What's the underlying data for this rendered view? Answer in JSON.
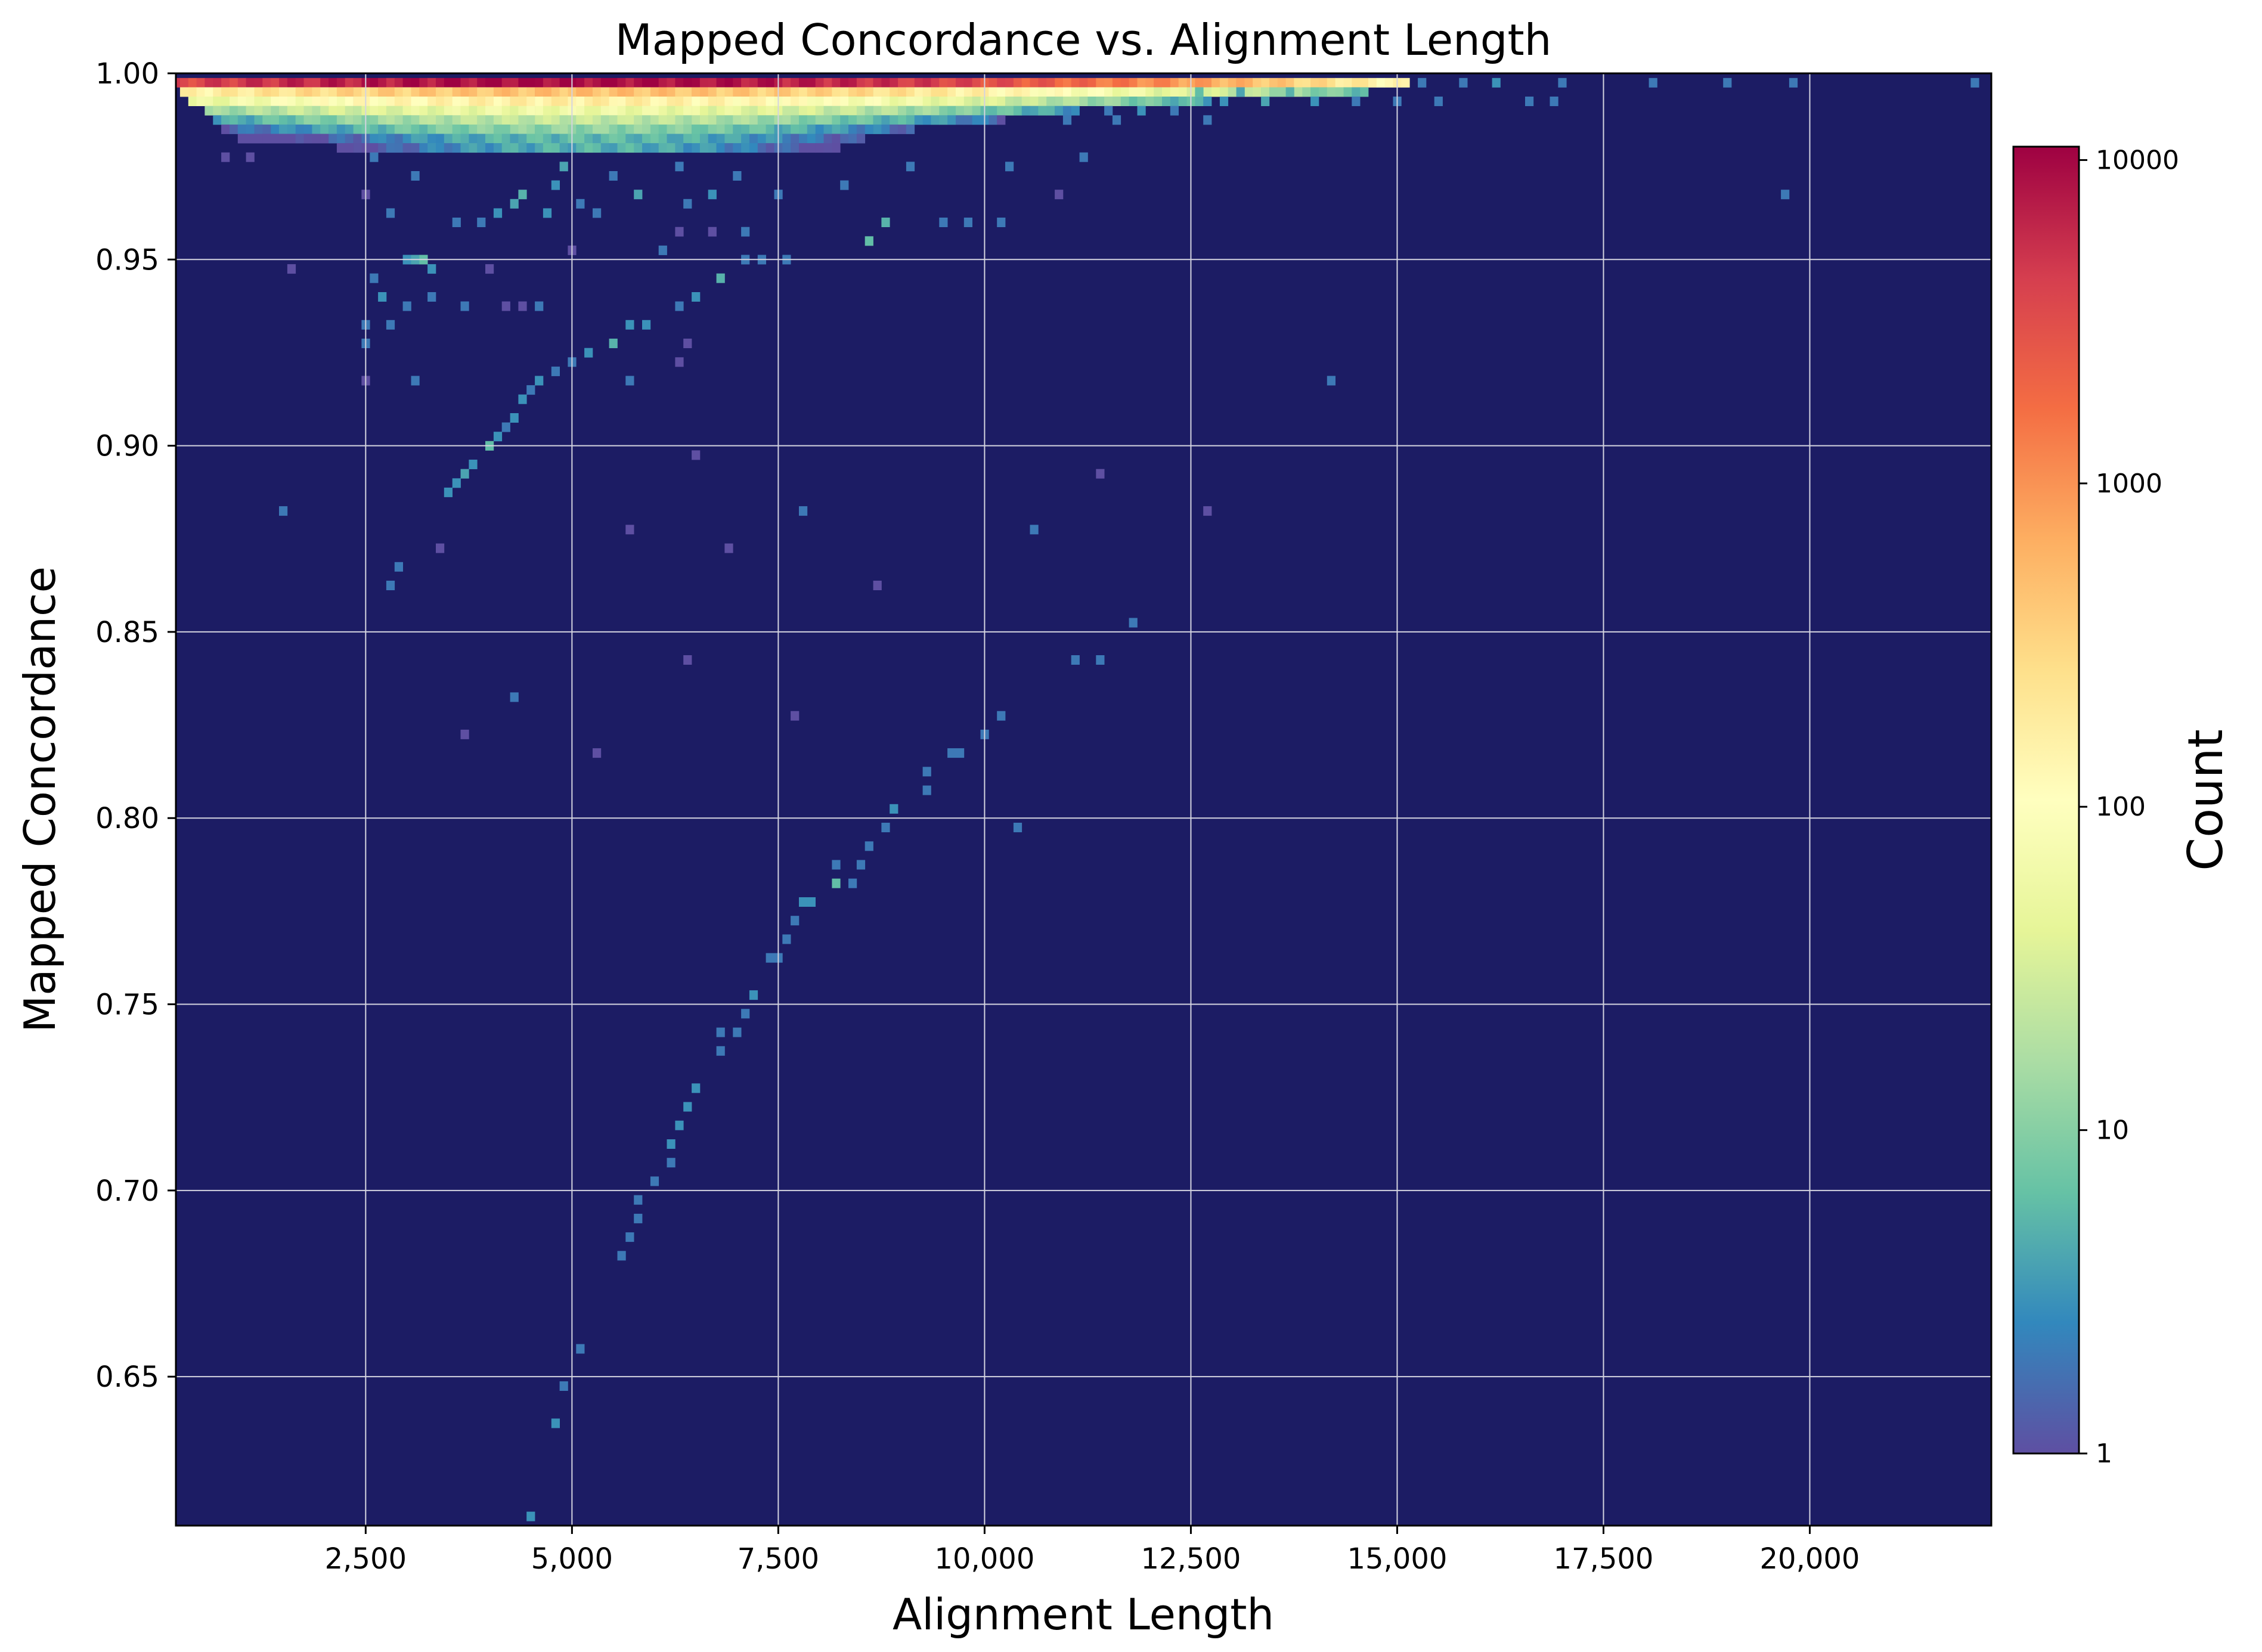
{
  "chart_data": {
    "type": "heatmap",
    "title": "Mapped Concordance vs. Alignment Length",
    "xlabel": "Alignment Length",
    "ylabel": "Mapped Concordance",
    "xlim": [
      200,
      22200
    ],
    "ylim": [
      0.61,
      1.0
    ],
    "x_ticks": [
      2500,
      5000,
      7500,
      10000,
      12500,
      15000,
      17500,
      20000
    ],
    "x_tick_labels": [
      "2,500",
      "5,000",
      "7,500",
      "10,000",
      "12,500",
      "15,000",
      "17,500",
      "20,000"
    ],
    "y_ticks": [
      0.65,
      0.7,
      0.75,
      0.8,
      0.85,
      0.9,
      0.95,
      1.0
    ],
    "y_tick_labels": [
      "0.65",
      "0.70",
      "0.75",
      "0.80",
      "0.85",
      "0.90",
      "0.95",
      "1.00"
    ],
    "grid": true,
    "background_color": "#1c1c64",
    "colormap": "Spectral_r",
    "colorbar": {
      "label": "Count",
      "scale": "log",
      "range": [
        1,
        11000
      ],
      "ticks": [
        1,
        10,
        100,
        1000,
        10000
      ],
      "tick_labels": [
        "1",
        "10",
        "100",
        "1000",
        "10000"
      ],
      "colors": [
        "#5e4fa2",
        "#3288bd",
        "#66c2a5",
        "#abdda4",
        "#e6f598",
        "#ffffbf",
        "#fee08b",
        "#fdae61",
        "#f46d43",
        "#d53e4f",
        "#9e0142"
      ]
    },
    "bin_width_x": 100,
    "bin_height_y": 0.0025,
    "dense_band": [
      {
        "y": 0.9975,
        "x_start": 200,
        "x_end": 15200,
        "peak_x": 5000,
        "peak_count": 10000,
        "spread": 3400
      },
      {
        "y": 0.995,
        "x_start": 300,
        "x_end": 14700,
        "peak_x": 5200,
        "peak_count": 500,
        "spread": 3200
      },
      {
        "y": 0.9925,
        "x_start": 400,
        "x_end": 12800,
        "peak_x": 5000,
        "peak_count": 180,
        "spread": 2800
      },
      {
        "y": 0.99,
        "x_start": 600,
        "x_end": 11200,
        "peak_x": 5000,
        "peak_count": 60,
        "spread": 2500
      },
      {
        "y": 0.9875,
        "x_start": 700,
        "x_end": 10300,
        "peak_x": 5000,
        "peak_count": 25,
        "spread": 2200
      },
      {
        "y": 0.985,
        "x_start": 800,
        "x_end": 9200,
        "peak_x": 5000,
        "peak_count": 12,
        "spread": 2000
      },
      {
        "y": 0.9825,
        "x_start": 1000,
        "x_end": 8600,
        "peak_x": 5200,
        "peak_count": 6,
        "spread": 1800
      },
      {
        "y": 0.98,
        "x_start": 2200,
        "x_end": 8300,
        "peak_x": 5200,
        "peak_count": 5,
        "spread": 1500
      }
    ],
    "cells": [
      {
        "x": 3000,
        "y": 0.95,
        "count": 3
      },
      {
        "x": 3100,
        "y": 0.95,
        "count": 4
      },
      {
        "x": 3200,
        "y": 0.95,
        "count": 6
      },
      {
        "x": 3300,
        "y": 0.9475,
        "count": 3
      },
      {
        "x": 2700,
        "y": 0.94,
        "count": 3
      },
      {
        "x": 2600,
        "y": 0.945,
        "count": 2
      },
      {
        "x": 2500,
        "y": 0.9325,
        "count": 2
      },
      {
        "x": 2500,
        "y": 0.9275,
        "count": 2
      },
      {
        "x": 2800,
        "y": 0.9325,
        "count": 2
      },
      {
        "x": 3000,
        "y": 0.9375,
        "count": 2
      },
      {
        "x": 3300,
        "y": 0.94,
        "count": 2
      },
      {
        "x": 3500,
        "y": 0.8875,
        "count": 3
      },
      {
        "x": 3600,
        "y": 0.89,
        "count": 3
      },
      {
        "x": 3700,
        "y": 0.8925,
        "count": 4
      },
      {
        "x": 3800,
        "y": 0.895,
        "count": 3
      },
      {
        "x": 4000,
        "y": 0.9,
        "count": 6
      },
      {
        "x": 4100,
        "y": 0.9025,
        "count": 3
      },
      {
        "x": 4200,
        "y": 0.905,
        "count": 2
      },
      {
        "x": 4300,
        "y": 0.9075,
        "count": 3
      },
      {
        "x": 4400,
        "y": 0.9125,
        "count": 3
      },
      {
        "x": 4500,
        "y": 0.915,
        "count": 2
      },
      {
        "x": 4600,
        "y": 0.9175,
        "count": 3
      },
      {
        "x": 4800,
        "y": 0.92,
        "count": 2
      },
      {
        "x": 5000,
        "y": 0.9225,
        "count": 2
      },
      {
        "x": 5200,
        "y": 0.925,
        "count": 3
      },
      {
        "x": 5500,
        "y": 0.9275,
        "count": 5
      },
      {
        "x": 5700,
        "y": 0.9325,
        "count": 3
      },
      {
        "x": 5900,
        "y": 0.9325,
        "count": 3
      },
      {
        "x": 6300,
        "y": 0.9375,
        "count": 2
      },
      {
        "x": 6500,
        "y": 0.94,
        "count": 3
      },
      {
        "x": 6800,
        "y": 0.945,
        "count": 5
      },
      {
        "x": 7100,
        "y": 0.95,
        "count": 2
      },
      {
        "x": 7300,
        "y": 0.95,
        "count": 2
      },
      {
        "x": 7600,
        "y": 0.95,
        "count": 2
      },
      {
        "x": 4100,
        "y": 0.9625,
        "count": 3
      },
      {
        "x": 4300,
        "y": 0.965,
        "count": 4
      },
      {
        "x": 4700,
        "y": 0.9625,
        "count": 3
      },
      {
        "x": 5100,
        "y": 0.965,
        "count": 2
      },
      {
        "x": 5300,
        "y": 0.9625,
        "count": 2
      },
      {
        "x": 5800,
        "y": 0.9675,
        "count": 4
      },
      {
        "x": 6400,
        "y": 0.965,
        "count": 2
      },
      {
        "x": 6700,
        "y": 0.9675,
        "count": 3
      },
      {
        "x": 7500,
        "y": 0.9675,
        "count": 2
      },
      {
        "x": 8800,
        "y": 0.96,
        "count": 5
      },
      {
        "x": 8600,
        "y": 0.955,
        "count": 6
      },
      {
        "x": 9500,
        "y": 0.96,
        "count": 2
      },
      {
        "x": 9800,
        "y": 0.96,
        "count": 2
      },
      {
        "x": 10200,
        "y": 0.96,
        "count": 2
      },
      {
        "x": 3900,
        "y": 0.96,
        "count": 2
      },
      {
        "x": 3600,
        "y": 0.96,
        "count": 2
      },
      {
        "x": 4800,
        "y": 0.97,
        "count": 3
      },
      {
        "x": 4400,
        "y": 0.9675,
        "count": 5
      },
      {
        "x": 2600,
        "y": 0.9775,
        "count": 2
      },
      {
        "x": 3100,
        "y": 0.9725,
        "count": 2
      },
      {
        "x": 4900,
        "y": 0.975,
        "count": 4
      },
      {
        "x": 5500,
        "y": 0.9725,
        "count": 2
      },
      {
        "x": 6300,
        "y": 0.975,
        "count": 2
      },
      {
        "x": 7000,
        "y": 0.9725,
        "count": 2
      },
      {
        "x": 8300,
        "y": 0.97,
        "count": 2
      },
      {
        "x": 9100,
        "y": 0.975,
        "count": 2
      },
      {
        "x": 10300,
        "y": 0.975,
        "count": 2
      },
      {
        "x": 11200,
        "y": 0.9775,
        "count": 2
      },
      {
        "x": 11800,
        "y": 0.8525,
        "count": 2
      },
      {
        "x": 11400,
        "y": 0.8425,
        "count": 2
      },
      {
        "x": 11100,
        "y": 0.8425,
        "count": 2
      },
      {
        "x": 10200,
        "y": 0.8275,
        "count": 2
      },
      {
        "x": 10000,
        "y": 0.8225,
        "count": 2
      },
      {
        "x": 9700,
        "y": 0.8175,
        "count": 2
      },
      {
        "x": 9600,
        "y": 0.8175,
        "count": 2
      },
      {
        "x": 9300,
        "y": 0.8125,
        "count": 2
      },
      {
        "x": 9300,
        "y": 0.8075,
        "count": 2
      },
      {
        "x": 8900,
        "y": 0.8025,
        "count": 3
      },
      {
        "x": 8800,
        "y": 0.7975,
        "count": 2
      },
      {
        "x": 8600,
        "y": 0.7925,
        "count": 2
      },
      {
        "x": 8500,
        "y": 0.7875,
        "count": 2
      },
      {
        "x": 8400,
        "y": 0.7825,
        "count": 2
      },
      {
        "x": 8200,
        "y": 0.7875,
        "count": 2
      },
      {
        "x": 8200,
        "y": 0.7825,
        "count": 6
      },
      {
        "x": 7900,
        "y": 0.7775,
        "count": 3
      },
      {
        "x": 7800,
        "y": 0.7775,
        "count": 3
      },
      {
        "x": 7700,
        "y": 0.7725,
        "count": 2
      },
      {
        "x": 7600,
        "y": 0.7675,
        "count": 2
      },
      {
        "x": 7500,
        "y": 0.7625,
        "count": 2
      },
      {
        "x": 7400,
        "y": 0.7625,
        "count": 2
      },
      {
        "x": 7200,
        "y": 0.7525,
        "count": 3
      },
      {
        "x": 7100,
        "y": 0.7475,
        "count": 2
      },
      {
        "x": 7000,
        "y": 0.7425,
        "count": 2
      },
      {
        "x": 6800,
        "y": 0.7375,
        "count": 2
      },
      {
        "x": 6800,
        "y": 0.7425,
        "count": 2
      },
      {
        "x": 6500,
        "y": 0.7275,
        "count": 3
      },
      {
        "x": 6400,
        "y": 0.7225,
        "count": 3
      },
      {
        "x": 6300,
        "y": 0.7175,
        "count": 3
      },
      {
        "x": 6200,
        "y": 0.7125,
        "count": 3
      },
      {
        "x": 6200,
        "y": 0.7075,
        "count": 2
      },
      {
        "x": 6000,
        "y": 0.7025,
        "count": 2
      },
      {
        "x": 5800,
        "y": 0.6975,
        "count": 2
      },
      {
        "x": 5800,
        "y": 0.6925,
        "count": 2
      },
      {
        "x": 5700,
        "y": 0.6875,
        "count": 2
      },
      {
        "x": 5600,
        "y": 0.6825,
        "count": 2
      },
      {
        "x": 5100,
        "y": 0.6575,
        "count": 2
      },
      {
        "x": 4900,
        "y": 0.6475,
        "count": 2
      },
      {
        "x": 4800,
        "y": 0.6375,
        "count": 3
      },
      {
        "x": 4500,
        "y": 0.6125,
        "count": 3
      },
      {
        "x": 10400,
        "y": 0.7975,
        "count": 2
      },
      {
        "x": 1500,
        "y": 0.8825,
        "count": 2
      },
      {
        "x": 3400,
        "y": 0.8725,
        "count": 1
      },
      {
        "x": 3700,
        "y": 0.8225,
        "count": 1
      },
      {
        "x": 4300,
        "y": 0.8325,
        "count": 2
      },
      {
        "x": 5300,
        "y": 0.8175,
        "count": 1
      },
      {
        "x": 5700,
        "y": 0.8775,
        "count": 1
      },
      {
        "x": 6400,
        "y": 0.8425,
        "count": 1
      },
      {
        "x": 6500,
        "y": 0.8975,
        "count": 1
      },
      {
        "x": 6900,
        "y": 0.8725,
        "count": 1
      },
      {
        "x": 7700,
        "y": 0.8275,
        "count": 1
      },
      {
        "x": 7800,
        "y": 0.8825,
        "count": 2
      },
      {
        "x": 8700,
        "y": 0.8625,
        "count": 1
      },
      {
        "x": 10600,
        "y": 0.8775,
        "count": 2
      },
      {
        "x": 11400,
        "y": 0.8925,
        "count": 1
      },
      {
        "x": 12700,
        "y": 0.8825,
        "count": 1
      },
      {
        "x": 14200,
        "y": 0.9175,
        "count": 2
      },
      {
        "x": 2800,
        "y": 0.8625,
        "count": 2
      },
      {
        "x": 2900,
        "y": 0.8675,
        "count": 2
      },
      {
        "x": 2500,
        "y": 0.9175,
        "count": 1
      },
      {
        "x": 1600,
        "y": 0.9475,
        "count": 1
      },
      {
        "x": 3100,
        "y": 0.9175,
        "count": 2
      },
      {
        "x": 3700,
        "y": 0.9375,
        "count": 2
      },
      {
        "x": 4200,
        "y": 0.9375,
        "count": 1
      },
      {
        "x": 4400,
        "y": 0.9375,
        "count": 1
      },
      {
        "x": 4600,
        "y": 0.9375,
        "count": 2
      },
      {
        "x": 5700,
        "y": 0.9175,
        "count": 2
      },
      {
        "x": 6300,
        "y": 0.9225,
        "count": 1
      },
      {
        "x": 6400,
        "y": 0.9275,
        "count": 1
      },
      {
        "x": 4000,
        "y": 0.9475,
        "count": 1
      },
      {
        "x": 6300,
        "y": 0.9575,
        "count": 1
      },
      {
        "x": 6700,
        "y": 0.9575,
        "count": 1
      },
      {
        "x": 7100,
        "y": 0.9575,
        "count": 2
      },
      {
        "x": 5000,
        "y": 0.9525,
        "count": 1
      },
      {
        "x": 6100,
        "y": 0.9525,
        "count": 2
      },
      {
        "x": 10900,
        "y": 0.9675,
        "count": 1
      },
      {
        "x": 19700,
        "y": 0.9675,
        "count": 2
      },
      {
        "x": 2500,
        "y": 0.9675,
        "count": 1
      },
      {
        "x": 2800,
        "y": 0.9625,
        "count": 2
      },
      {
        "x": 1100,
        "y": 0.9775,
        "count": 1
      },
      {
        "x": 800,
        "y": 0.9775,
        "count": 1
      },
      {
        "x": 15000,
        "y": 0.9925,
        "count": 2
      },
      {
        "x": 15300,
        "y": 0.9975,
        "count": 2
      },
      {
        "x": 15500,
        "y": 0.9925,
        "count": 2
      },
      {
        "x": 15800,
        "y": 0.9975,
        "count": 2
      },
      {
        "x": 16200,
        "y": 0.9975,
        "count": 3
      },
      {
        "x": 16600,
        "y": 0.9925,
        "count": 2
      },
      {
        "x": 17000,
        "y": 0.9975,
        "count": 2
      },
      {
        "x": 16900,
        "y": 0.9925,
        "count": 2
      },
      {
        "x": 18100,
        "y": 0.9975,
        "count": 2
      },
      {
        "x": 19000,
        "y": 0.9975,
        "count": 2
      },
      {
        "x": 19800,
        "y": 0.9975,
        "count": 2
      },
      {
        "x": 22000,
        "y": 0.9975,
        "count": 2
      },
      {
        "x": 14000,
        "y": 0.9925,
        "count": 3
      },
      {
        "x": 13400,
        "y": 0.9925,
        "count": 4
      },
      {
        "x": 12900,
        "y": 0.9925,
        "count": 3
      },
      {
        "x": 12300,
        "y": 0.99,
        "count": 2
      },
      {
        "x": 11900,
        "y": 0.99,
        "count": 3
      },
      {
        "x": 11500,
        "y": 0.99,
        "count": 2
      },
      {
        "x": 12700,
        "y": 0.9875,
        "count": 2
      },
      {
        "x": 11600,
        "y": 0.9875,
        "count": 2
      },
      {
        "x": 11000,
        "y": 0.9875,
        "count": 2
      },
      {
        "x": 14500,
        "y": 0.9925,
        "count": 2
      },
      {
        "x": 13700,
        "y": 0.995,
        "count": 5
      },
      {
        "x": 13100,
        "y": 0.995,
        "count": 4
      },
      {
        "x": 12600,
        "y": 0.995,
        "count": 6
      }
    ]
  }
}
